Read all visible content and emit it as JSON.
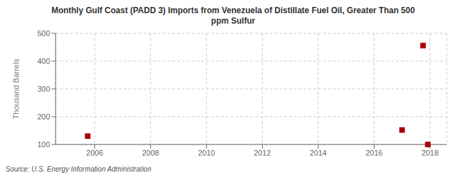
{
  "chart_data": {
    "type": "scatter",
    "title": "Monthly Gulf Coast (PADD 3) Imports from Venezuela of Distillate Fuel Oil, Greater Than 500\nppm Sulfur",
    "ylabel": "Thousand Barrels",
    "annotations": [
      "Source: U.S. Energy Information Administration"
    ],
    "x": [
      2005.75,
      2017.0,
      2017.75,
      2017.92
    ],
    "values": [
      130,
      152,
      456,
      100
    ],
    "color": "#aa0000",
    "marker": "square",
    "xlim": [
      2004.6,
      2018.6
    ],
    "ylim": [
      100,
      500
    ],
    "xticks": [
      2006,
      2008,
      2010,
      2012,
      2014,
      2016,
      2018
    ],
    "yticks": [
      100,
      200,
      300,
      400,
      500
    ],
    "grid": true
  }
}
